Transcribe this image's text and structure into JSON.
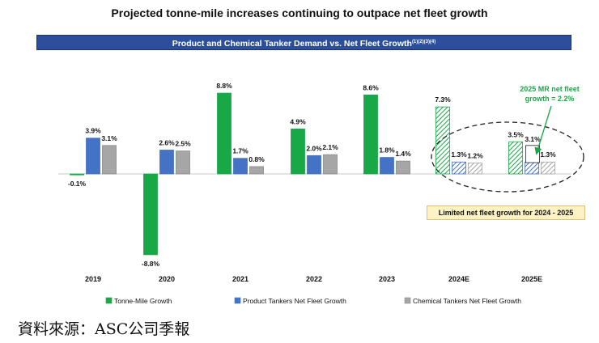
{
  "title": "Projected tonne-mile increases continuing to outpace net fleet growth",
  "banner": {
    "text": "Product and Chemical Tanker Demand vs. Net Fleet Growth",
    "superscript": "(1)(2)(3)(4)"
  },
  "chart_data": {
    "type": "bar",
    "categories": [
      "2019",
      "2020",
      "2021",
      "2022",
      "2023",
      "2024E",
      "2025E"
    ],
    "projected_categories": [
      "2024E",
      "2025E"
    ],
    "ylim": [
      -10,
      10
    ],
    "series": [
      {
        "name": "Tonne-Mile Growth",
        "color": "#19a846",
        "values": [
          -0.1,
          -8.8,
          8.8,
          4.9,
          8.6,
          7.3,
          3.5
        ],
        "labels": [
          "-0.1%",
          "-8.8%",
          "8.8%",
          "4.9%",
          "8.6%",
          "7.3%",
          "3.5%"
        ]
      },
      {
        "name": "Product Tankers Net Fleet Growth",
        "color": "#4472c4",
        "values": [
          3.9,
          2.6,
          1.7,
          2.0,
          1.8,
          1.3,
          1.3
        ],
        "labels": [
          "3.9%",
          "2.6%",
          "1.7%",
          "2.0%",
          "1.8%",
          "1.3%",
          ""
        ]
      },
      {
        "name": "Chemical Tankers Net Fleet Growth",
        "color": "#a6a6a6",
        "values": [
          3.1,
          2.5,
          0.8,
          2.1,
          1.4,
          1.2,
          1.3
        ],
        "labels": [
          "3.1%",
          "2.5%",
          "0.8%",
          "2.1%",
          "1.4%",
          "1.2%",
          "1.3%"
        ]
      }
    ],
    "extra_bar": {
      "category": "2025E",
      "value": 3.1,
      "label": "3.1%",
      "color": "#ffffff"
    },
    "annotations": {
      "mr_note_line1": "2025 MR net fleet",
      "mr_note_line2": "growth = 2.2%",
      "mr_note_color": "#19a846",
      "limited_growth": "Limited net fleet growth for 2024 - 2025"
    },
    "legend_position": "bottom"
  },
  "source": "資料來源：ASC公司季報"
}
